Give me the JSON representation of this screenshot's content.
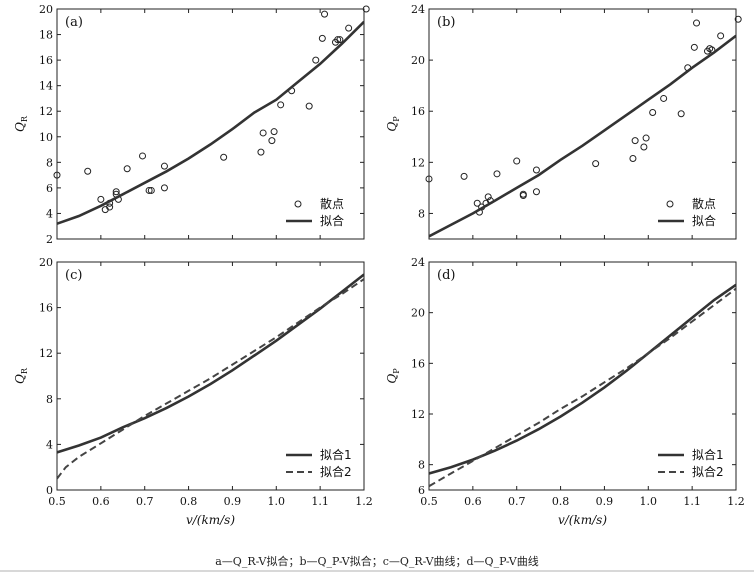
{
  "caption": "a—Q_R-V拟合；b—Q_P-V拟合；c—Q_R-V曲线；d—Q_P-V曲线",
  "chart_data": [
    {
      "panel": "(a)",
      "type": "scatter",
      "ylabel": "Q_R",
      "xlim": [
        0.5,
        1.2
      ],
      "ylim": [
        2,
        20
      ],
      "yticks": [
        2,
        4,
        6,
        8,
        10,
        12,
        14,
        16,
        18,
        20
      ],
      "xtick_labels_shown": false,
      "legend_position": "bottom-right",
      "series": [
        {
          "name": "散点",
          "kind": "points",
          "x": [
            0.5,
            0.57,
            0.6,
            0.61,
            0.62,
            0.62,
            0.635,
            0.635,
            0.64,
            0.66,
            0.695,
            0.71,
            0.715,
            0.745,
            0.745,
            0.88,
            0.965,
            0.97,
            0.99,
            0.995,
            1.01,
            1.035,
            1.075,
            1.09,
            1.105,
            1.11,
            1.135,
            1.14,
            1.145,
            1.165,
            1.205
          ],
          "y": [
            7.0,
            7.3,
            5.1,
            4.3,
            4.8,
            4.5,
            5.7,
            5.5,
            5.1,
            7.5,
            8.5,
            5.8,
            5.8,
            7.7,
            6.0,
            8.4,
            8.8,
            10.3,
            9.7,
            10.4,
            12.5,
            13.6,
            12.4,
            16.0,
            17.7,
            19.6,
            17.4,
            17.6,
            17.6,
            18.5,
            20.0
          ]
        },
        {
          "name": "拟合",
          "kind": "line",
          "x": [
            0.5,
            0.55,
            0.6,
            0.65,
            0.7,
            0.75,
            0.8,
            0.85,
            0.9,
            0.95,
            1.0,
            1.05,
            1.1,
            1.15,
            1.2
          ],
          "y": [
            3.2,
            3.8,
            4.6,
            5.5,
            6.4,
            7.3,
            8.3,
            9.4,
            10.6,
            11.9,
            12.9,
            14.3,
            15.7,
            17.3,
            19.0
          ]
        }
      ]
    },
    {
      "panel": "(b)",
      "type": "scatter",
      "ylabel": "Q_P",
      "xlim": [
        0.5,
        1.2
      ],
      "ylim": [
        6,
        24
      ],
      "yticks": [
        8,
        12,
        16,
        20,
        24
      ],
      "xtick_labels_shown": false,
      "legend_position": "bottom-right",
      "series": [
        {
          "name": "散点",
          "kind": "points",
          "x": [
            0.5,
            0.58,
            0.61,
            0.615,
            0.62,
            0.63,
            0.635,
            0.64,
            0.655,
            0.7,
            0.715,
            0.715,
            0.745,
            0.745,
            0.88,
            0.965,
            0.97,
            0.99,
            0.995,
            1.01,
            1.035,
            1.075,
            1.09,
            1.105,
            1.11,
            1.135,
            1.14,
            1.145,
            1.165,
            1.205
          ],
          "y": [
            10.7,
            10.9,
            8.8,
            8.1,
            8.5,
            8.8,
            9.3,
            9.0,
            11.1,
            12.1,
            9.5,
            9.4,
            11.4,
            9.7,
            11.9,
            12.3,
            13.7,
            13.2,
            13.9,
            15.9,
            17.0,
            15.8,
            19.4,
            21.0,
            22.9,
            20.7,
            20.9,
            20.8,
            21.9,
            23.2
          ]
        },
        {
          "name": "拟合",
          "kind": "line",
          "x": [
            0.5,
            0.55,
            0.6,
            0.65,
            0.7,
            0.75,
            0.8,
            0.85,
            0.9,
            0.95,
            1.0,
            1.05,
            1.1,
            1.15,
            1.2
          ],
          "y": [
            6.2,
            7.1,
            8.0,
            9.0,
            10.0,
            11.0,
            12.2,
            13.3,
            14.5,
            15.7,
            16.9,
            18.1,
            19.4,
            20.6,
            21.9
          ]
        }
      ]
    },
    {
      "panel": "(c)",
      "type": "line",
      "ylabel": "Q_R",
      "xlabel": "v/(km/s)",
      "xlim": [
        0.5,
        1.2
      ],
      "ylim": [
        0,
        20
      ],
      "yticks": [
        0,
        4,
        8,
        12,
        16,
        20
      ],
      "xticks": [
        0.5,
        0.6,
        0.7,
        0.8,
        0.9,
        1.0,
        1.1,
        1.2
      ],
      "legend_position": "bottom-right",
      "series": [
        {
          "name": "拟合1",
          "dash": "solid",
          "x": [
            0.5,
            0.55,
            0.6,
            0.65,
            0.7,
            0.75,
            0.8,
            0.85,
            0.9,
            0.95,
            1.0,
            1.05,
            1.1,
            1.15,
            1.2
          ],
          "y": [
            3.3,
            3.9,
            4.6,
            5.5,
            6.3,
            7.2,
            8.2,
            9.3,
            10.5,
            11.8,
            13.1,
            14.5,
            15.9,
            17.4,
            18.9
          ]
        },
        {
          "name": "拟合2",
          "dash": "dashed",
          "x": [
            0.5,
            0.52,
            0.55,
            0.6,
            0.65,
            0.7,
            0.75,
            0.8,
            0.85,
            0.9,
            0.95,
            1.0,
            1.05,
            1.1,
            1.15,
            1.2
          ],
          "y": [
            1.0,
            2.0,
            2.9,
            4.1,
            5.3,
            6.5,
            7.6,
            8.7,
            9.8,
            11.0,
            12.2,
            13.4,
            14.7,
            16.0,
            17.2,
            18.5
          ]
        }
      ]
    },
    {
      "panel": "(d)",
      "type": "line",
      "ylabel": "Q_P",
      "xlabel": "v/(km/s)",
      "xlim": [
        0.5,
        1.2
      ],
      "ylim": [
        6,
        24
      ],
      "yticks": [
        6,
        8,
        12,
        16,
        20,
        24
      ],
      "xticks": [
        0.5,
        0.6,
        0.7,
        0.8,
        0.9,
        1.0,
        1.1,
        1.2
      ],
      "legend_position": "bottom-right",
      "series": [
        {
          "name": "拟合1",
          "dash": "solid",
          "x": [
            0.5,
            0.55,
            0.6,
            0.65,
            0.7,
            0.75,
            0.8,
            0.85,
            0.9,
            0.95,
            1.0,
            1.05,
            1.1,
            1.15,
            1.2
          ],
          "y": [
            7.3,
            7.8,
            8.4,
            9.1,
            9.9,
            10.8,
            11.8,
            12.9,
            14.1,
            15.4,
            16.8,
            18.2,
            19.6,
            21.0,
            22.2
          ]
        },
        {
          "name": "拟合2",
          "dash": "dashed",
          "x": [
            0.5,
            0.55,
            0.6,
            0.65,
            0.7,
            0.75,
            0.8,
            0.85,
            0.9,
            0.95,
            1.0,
            1.05,
            1.1,
            1.15,
            1.2
          ],
          "y": [
            6.3,
            7.3,
            8.3,
            9.3,
            10.3,
            11.3,
            12.4,
            13.4,
            14.5,
            15.6,
            16.8,
            18.0,
            19.3,
            20.6,
            21.9
          ]
        }
      ]
    }
  ]
}
